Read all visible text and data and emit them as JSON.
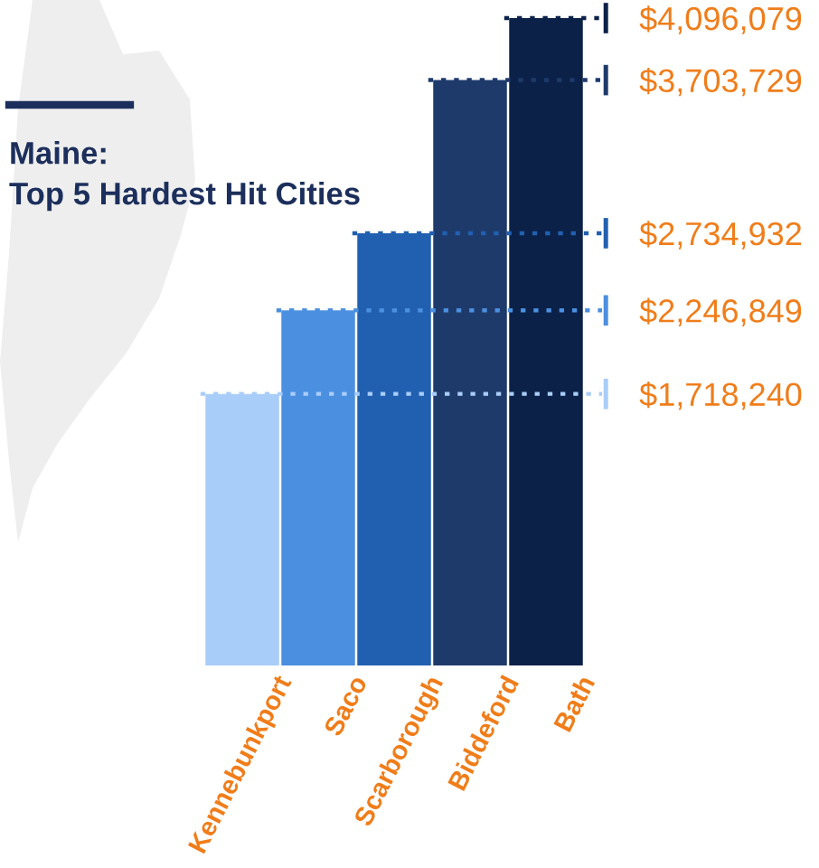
{
  "chart_data": {
    "type": "bar",
    "title": "Maine:\nTop 5 Hardest Hit Cities",
    "categories": [
      "Kennebunkport",
      "Saco",
      "Scarborough",
      "Biddeford",
      "Bath"
    ],
    "values": [
      1718240,
      2246849,
      2734932,
      3703729,
      4096079
    ],
    "colors": [
      "#a9cdf9",
      "#4b8fe0",
      "#2160b0",
      "#1e3a6b",
      "#0b2148"
    ],
    "ylim": [
      0,
      4096079
    ],
    "yticks": [
      {
        "value": 1718240,
        "label": "$1,718,240"
      },
      {
        "value": 2246849,
        "label": "$2,246,849"
      },
      {
        "value": 2734932,
        "label": "$2,734,932"
      },
      {
        "value": 3703729,
        "label": "$3,703,729"
      },
      {
        "value": 4096079,
        "label": "$4,096,079"
      }
    ],
    "ref_lines": [
      {
        "axis": "y",
        "value": 1718240,
        "color": "#a9cdf9",
        "line_style": "dotted"
      },
      {
        "axis": "y",
        "value": 2246849,
        "color": "#4b8fe0",
        "line_style": "dotted"
      },
      {
        "axis": "y",
        "value": 2734932,
        "color": "#2160b0",
        "line_style": "dotted"
      },
      {
        "axis": "y",
        "value": 3703729,
        "color": "#1e3a6b",
        "line_style": "dotted"
      },
      {
        "axis": "y",
        "value": 4096079,
        "color": "#0b2148",
        "line_style": "dotted"
      }
    ],
    "grid": false,
    "legend": false
  }
}
